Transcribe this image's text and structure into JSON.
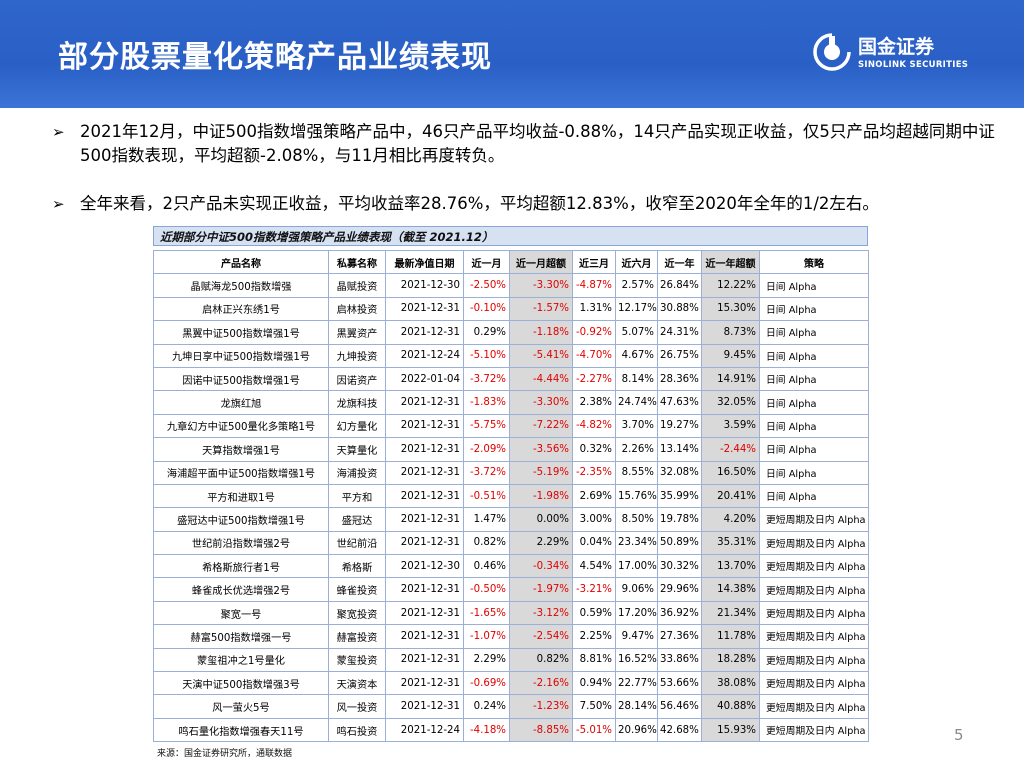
{
  "header": {
    "title": "部分股票量化策略产品业绩表现",
    "logo_cn": "国金证券",
    "logo_en": "SINOLINK SECURITIES",
    "bg_color": "#2f66cc"
  },
  "bullets": [
    "2021年12月，中证500指数增强策略产品中，46只产品平均收益-0.88%，14只产品实现正收益，仅5只产品均超越同期中证500指数表现，平均超额-2.08%，与11月相比再度转负。",
    "全年来看，2只产品未实现正收益，平均收益率28.76%，平均超额12.83%，收窄至2020年全年的1/2左右。"
  ],
  "table": {
    "title": "近期部分中证500指数增强策略产品业绩表现（截至 2021.12）",
    "headers": [
      "产品名称",
      "私募名称",
      "最新净值日期",
      "近一月",
      "近一月超额",
      "近三月",
      "近六月",
      "近一年",
      "近一年超额",
      "策略"
    ],
    "rows": [
      [
        "晶赋海龙500指数增强",
        "晶赋投资",
        "2021-12-30",
        "-2.50%",
        "-3.30%",
        "-4.87%",
        "2.57%",
        "26.84%",
        "12.22%",
        "日间 Alpha"
      ],
      [
        "启林正兴东绣1号",
        "启林投资",
        "2021-12-31",
        "-0.10%",
        "-1.57%",
        "1.31%",
        "12.17%",
        "30.88%",
        "15.30%",
        "日间 Alpha"
      ],
      [
        "黑翼中证500指数增强1号",
        "黑翼资产",
        "2021-12-31",
        "0.29%",
        "-1.18%",
        "-0.92%",
        "5.07%",
        "24.31%",
        "8.73%",
        "日间 Alpha"
      ],
      [
        "九坤日享中证500指数增强1号",
        "九坤投资",
        "2021-12-24",
        "-5.10%",
        "-5.41%",
        "-4.70%",
        "4.67%",
        "26.75%",
        "9.45%",
        "日间 Alpha"
      ],
      [
        "因诺中证500指数增强1号",
        "因诺资产",
        "2022-01-04",
        "-3.72%",
        "-4.44%",
        "-2.27%",
        "8.14%",
        "28.36%",
        "14.91%",
        "日间 Alpha"
      ],
      [
        "龙旗红旭",
        "龙旗科技",
        "2021-12-31",
        "-1.83%",
        "-3.30%",
        "2.38%",
        "24.74%",
        "47.63%",
        "32.05%",
        "日间 Alpha"
      ],
      [
        "九章幻方中证500量化多策略1号",
        "幻方量化",
        "2021-12-31",
        "-5.75%",
        "-7.22%",
        "-4.82%",
        "3.70%",
        "19.27%",
        "3.59%",
        "日间 Alpha"
      ],
      [
        "天算指数增强1号",
        "天算量化",
        "2021-12-31",
        "-2.09%",
        "-3.56%",
        "0.32%",
        "2.26%",
        "13.14%",
        "-2.44%",
        "日间 Alpha"
      ],
      [
        "海浦超平面中证500指数增强1号",
        "海浦投资",
        "2021-12-31",
        "-3.72%",
        "-5.19%",
        "-2.35%",
        "8.55%",
        "32.08%",
        "16.50%",
        "日间 Alpha"
      ],
      [
        "平方和进取1号",
        "平方和",
        "2021-12-31",
        "-0.51%",
        "-1.98%",
        "2.69%",
        "15.76%",
        "35.99%",
        "20.41%",
        "日间 Alpha"
      ],
      [
        "盛冠达中证500指数增强1号",
        "盛冠达",
        "2021-12-31",
        "1.47%",
        "0.00%",
        "3.00%",
        "8.50%",
        "19.78%",
        "4.20%",
        "更短周期及日内 Alpha"
      ],
      [
        "世纪前沿指数增强2号",
        "世纪前沿",
        "2021-12-31",
        "0.82%",
        "2.29%",
        "0.04%",
        "23.34%",
        "50.89%",
        "35.31%",
        "更短周期及日内 Alpha"
      ],
      [
        "希格斯旅行者1号",
        "希格斯",
        "2021-12-30",
        "0.46%",
        "-0.34%",
        "4.54%",
        "17.00%",
        "30.32%",
        "13.70%",
        "更短周期及日内 Alpha"
      ],
      [
        "蜂雀成长优选增强2号",
        "蜂雀投资",
        "2021-12-31",
        "-0.50%",
        "-1.97%",
        "-3.21%",
        "9.06%",
        "29.96%",
        "14.38%",
        "更短周期及日内 Alpha"
      ],
      [
        "聚宽一号",
        "聚宽投资",
        "2021-12-31",
        "-1.65%",
        "-3.12%",
        "0.59%",
        "17.20%",
        "36.92%",
        "21.34%",
        "更短周期及日内 Alpha"
      ],
      [
        "赫富500指数增强一号",
        "赫富投资",
        "2021-12-31",
        "-1.07%",
        "-2.54%",
        "2.25%",
        "9.47%",
        "27.36%",
        "11.78%",
        "更短周期及日内 Alpha"
      ],
      [
        "蒙玺祖冲之1号量化",
        "蒙玺投资",
        "2021-12-31",
        "2.29%",
        "0.82%",
        "8.81%",
        "16.52%",
        "33.86%",
        "18.28%",
        "更短周期及日内 Alpha"
      ],
      [
        "天演中证500指数增强3号",
        "天演资本",
        "2021-12-31",
        "-0.69%",
        "-2.16%",
        "0.94%",
        "22.77%",
        "53.66%",
        "38.08%",
        "更短周期及日内 Alpha"
      ],
      [
        "风一萤火5号",
        "风一投资",
        "2021-12-31",
        "0.24%",
        "-1.23%",
        "7.50%",
        "28.14%",
        "56.46%",
        "40.88%",
        "更短周期及日内 Alpha"
      ],
      [
        "鸣石量化指数增强春天11号",
        "鸣石投资",
        "2021-12-24",
        "-4.18%",
        "-8.85%",
        "-5.01%",
        "20.96%",
        "42.68%",
        "15.93%",
        "更短周期及日内 Alpha"
      ]
    ],
    "source": "来源：国金证券研究所，通联数据"
  },
  "page_number": "5",
  "colors": {
    "negative": "#e00000",
    "shade": "#d9d9d9",
    "border": "#9ab0d6"
  }
}
